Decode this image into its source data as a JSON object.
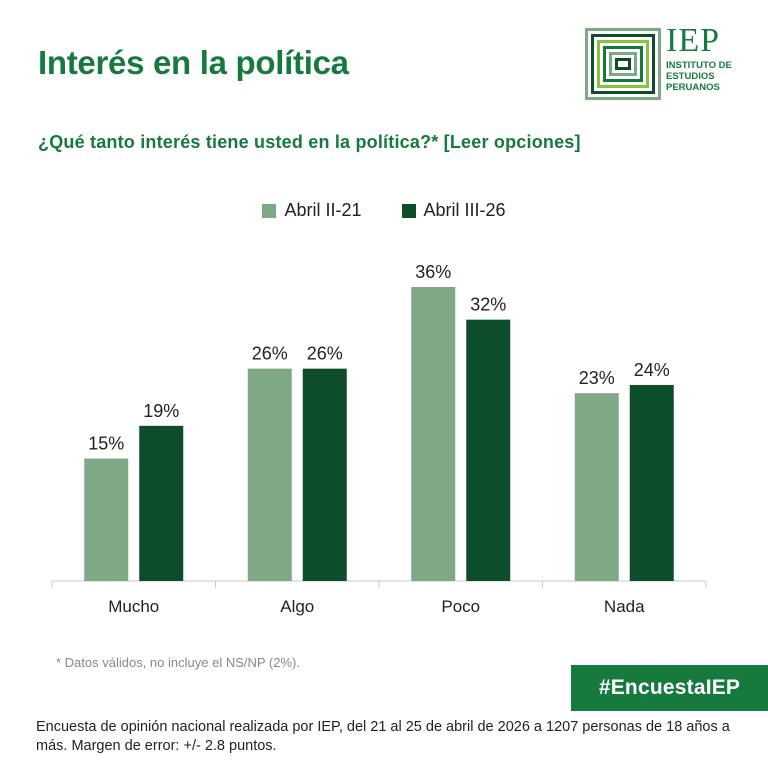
{
  "header": {
    "title": "Interés en la política",
    "question": "¿Qué tanto interés tiene usted en la política?* [Leer opciones]"
  },
  "logo": {
    "name": "IEP",
    "lines": [
      "INSTITUTO DE",
      "ESTUDIOS",
      "PERUANOS"
    ]
  },
  "colors": {
    "brand": "#167a3e",
    "series1": "#7fa986",
    "series2": "#0d4d2b"
  },
  "chart_data": {
    "type": "bar",
    "categories": [
      "Mucho",
      "Algo",
      "Poco",
      "Nada"
    ],
    "series": [
      {
        "name": "Abril II-21",
        "values": [
          15,
          26,
          36,
          23
        ],
        "labels": [
          "15%",
          "26%",
          "36%",
          "23%"
        ]
      },
      {
        "name": "Abril III-26",
        "values": [
          19,
          26,
          32,
          24
        ],
        "labels": [
          "19%",
          "26%",
          "32%",
          "24%"
        ]
      }
    ],
    "ylim": [
      0,
      36
    ],
    "grid": false,
    "legend": "top-center"
  },
  "footer": {
    "footnote": "* Datos válidos, no incluye el NS/NP (2%).",
    "hashtag": "#EncuestaIEP",
    "source": "Encuesta de opinión nacional realizada por IEP, del 21 al 25 de abril de 2026 a 1207 personas de 18 años a más. Margen de error: +/- 2.8 puntos."
  }
}
